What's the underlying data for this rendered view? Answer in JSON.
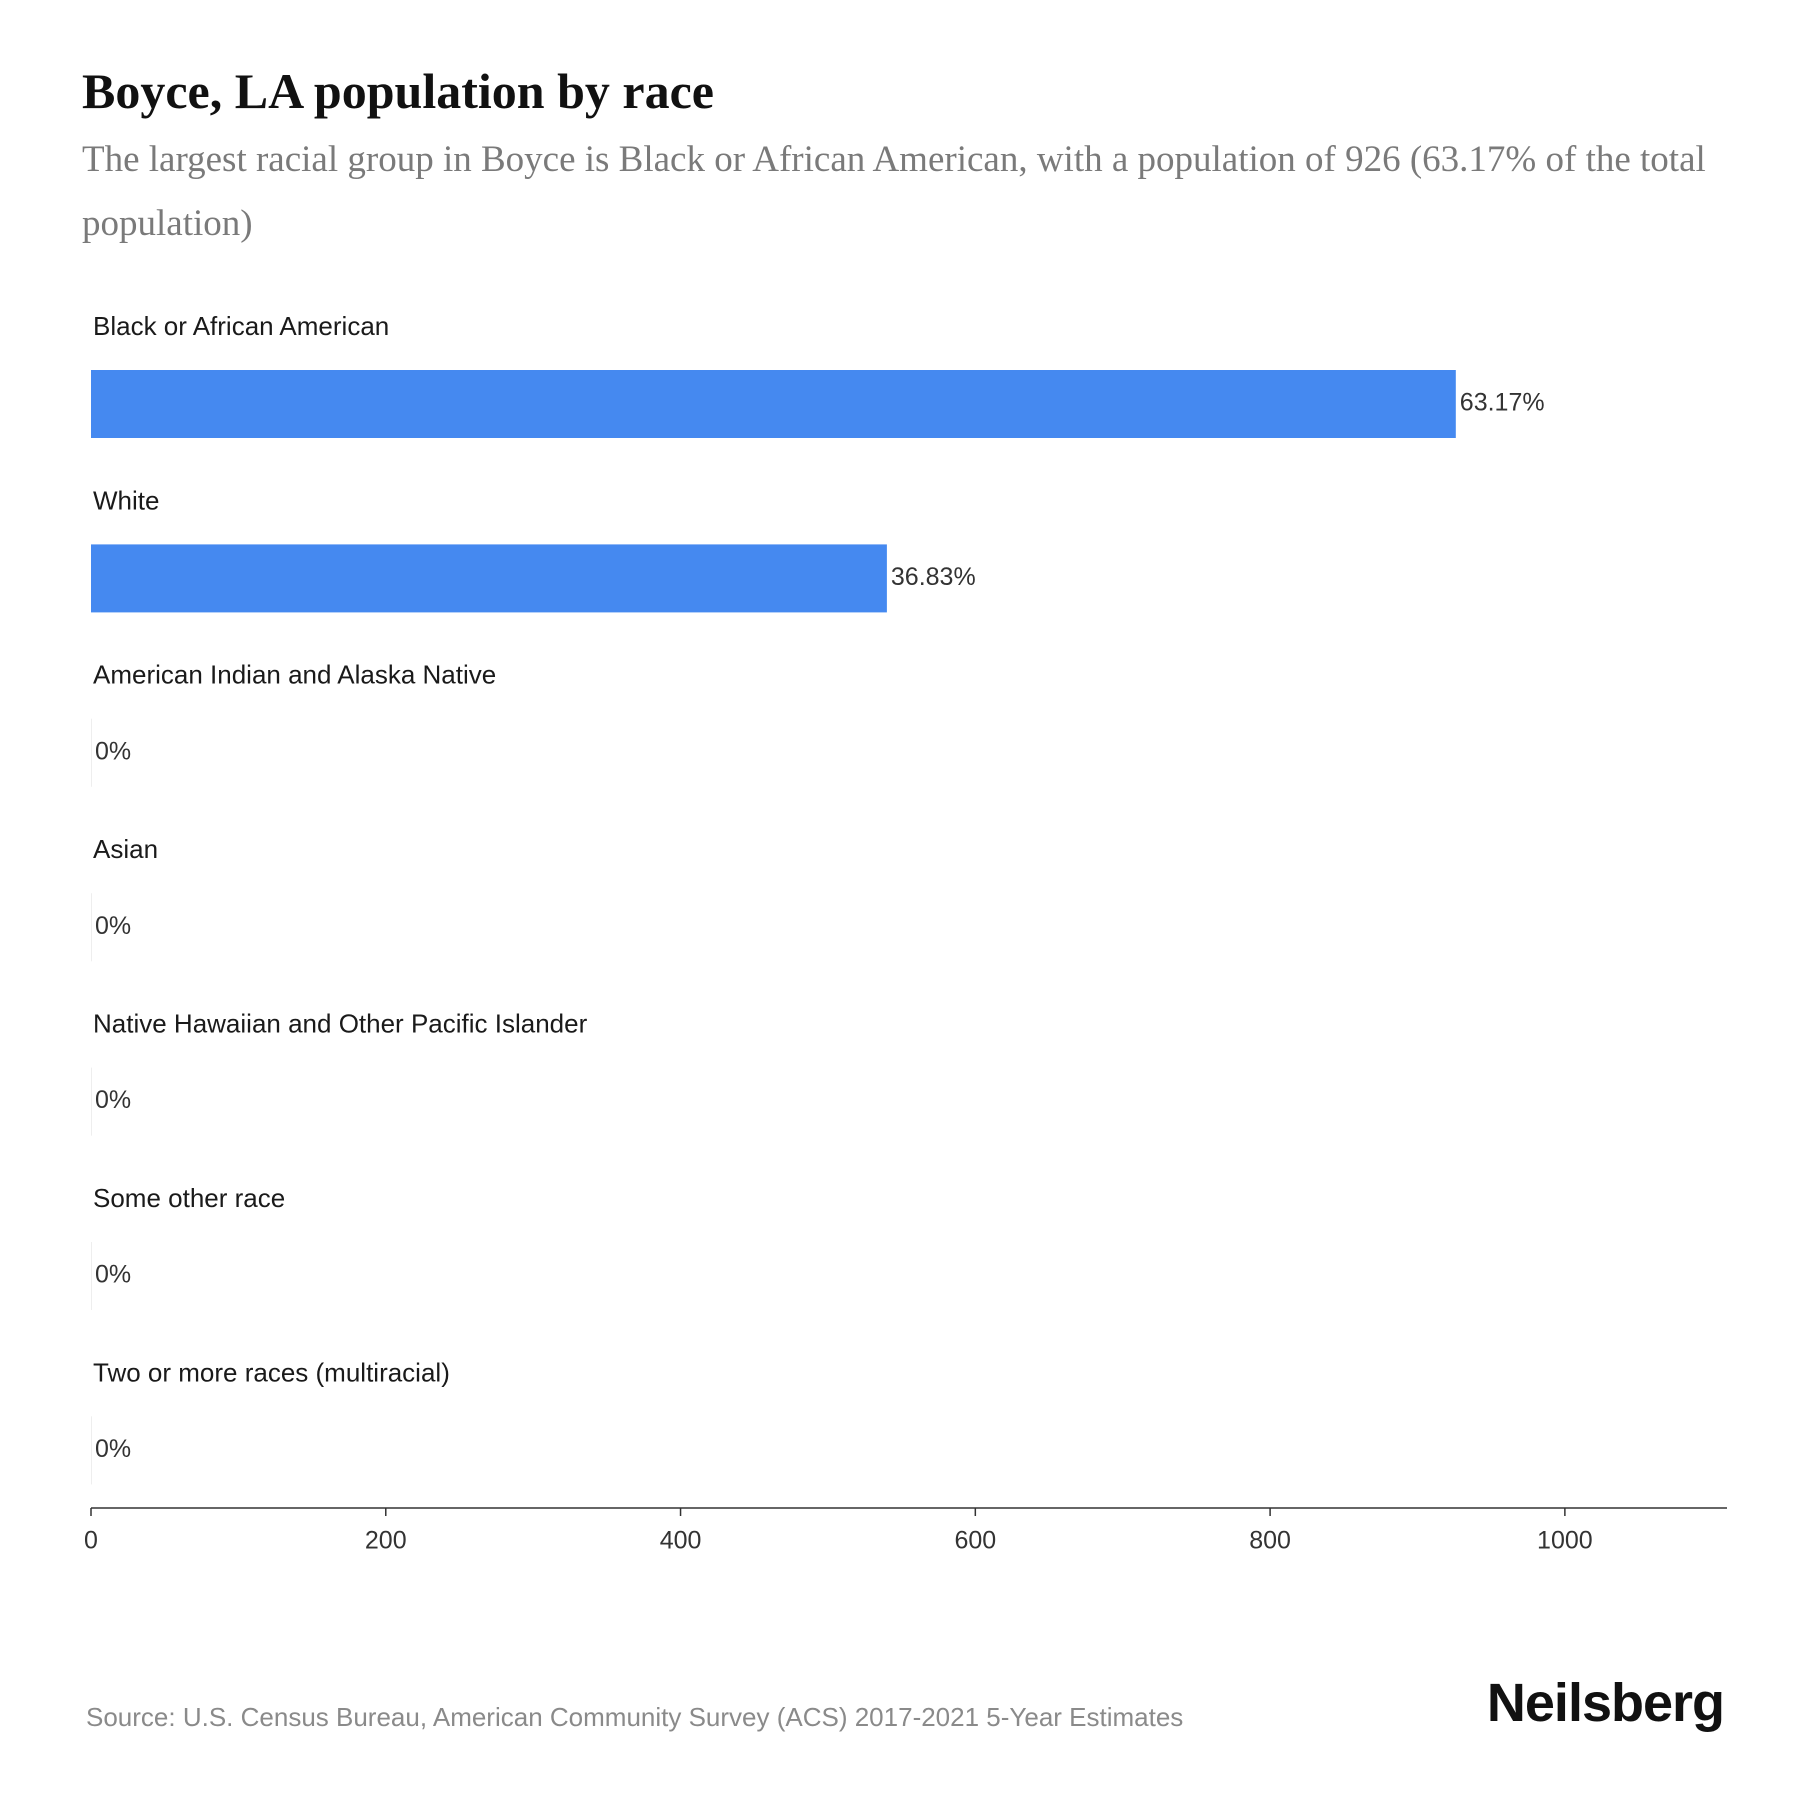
{
  "header": {
    "title": "Boyce, LA population by race",
    "subtitle": "The largest racial group in Boyce is Black or African American, with a population of 926 (63.17% of the total population)"
  },
  "chart_data": {
    "type": "bar",
    "orientation": "horizontal",
    "categories": [
      "Black or African American",
      "White",
      "American Indian and Alaska Native",
      "Asian",
      "Native Hawaiian and Other Pacific Islander",
      "Some other race",
      "Two or more races (multiracial)"
    ],
    "values": [
      926,
      540,
      0,
      0,
      0,
      0,
      0
    ],
    "value_labels": [
      "63.17%",
      "36.83%",
      "0%",
      "0%",
      "0%",
      "0%",
      "0%"
    ],
    "xlim": [
      0,
      1110
    ],
    "xticks": [
      0,
      200,
      400,
      600,
      800,
      1000
    ],
    "xtick_labels": [
      "0",
      "200",
      "400",
      "600",
      "800",
      "1000"
    ],
    "bar_color": "#4589f0",
    "grid": false,
    "legend": "none"
  },
  "footer": {
    "source": "Source: U.S. Census Bureau, American Community Survey (ACS) 2017-2021 5-Year Estimates",
    "brand": "Neilsberg"
  }
}
